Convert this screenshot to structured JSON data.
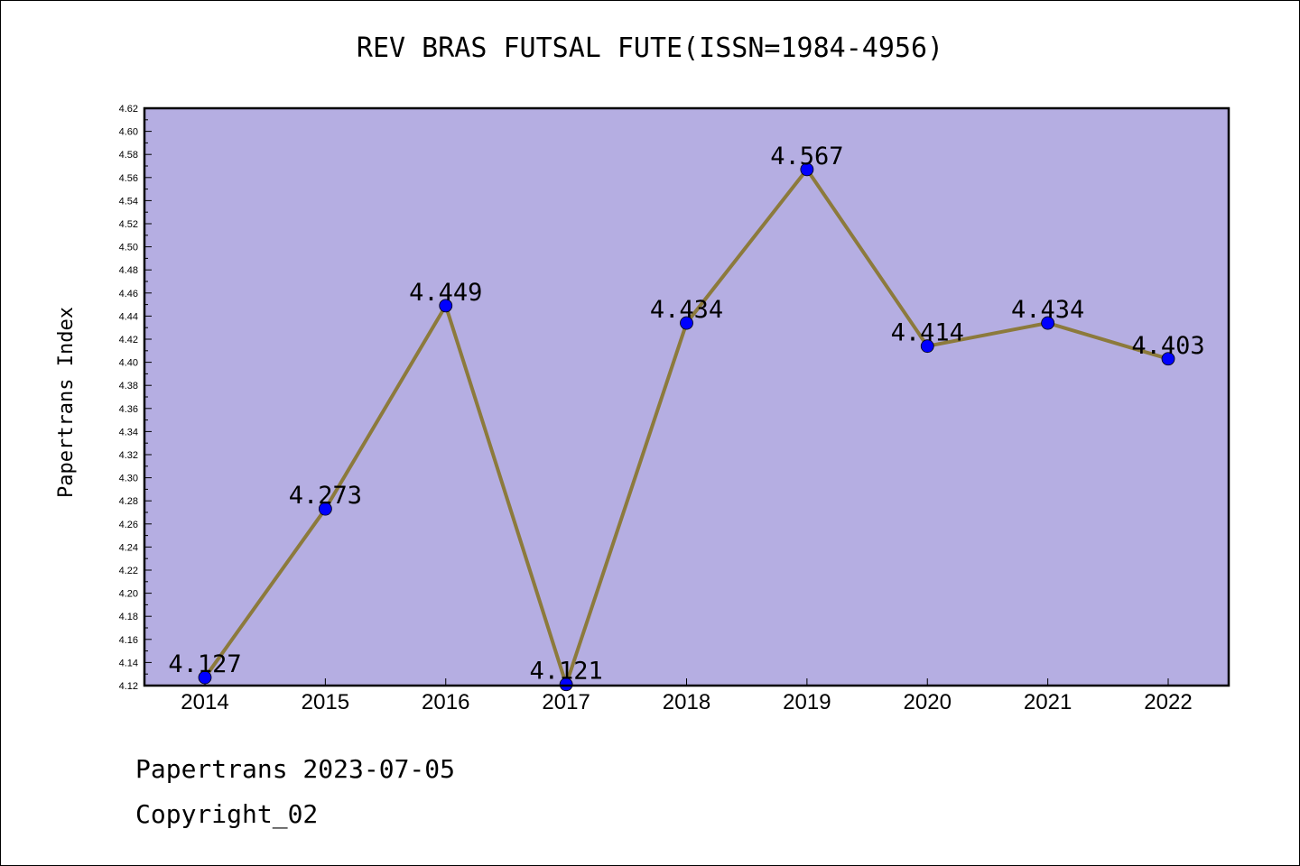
{
  "chart_data": {
    "type": "line",
    "title": "REV BRAS FUTSAL FUTE(ISSN=1984-4956)",
    "xlabel": "",
    "ylabel": "Papertrans Index",
    "categories": [
      "2014",
      "2015",
      "2016",
      "2017",
      "2018",
      "2019",
      "2020",
      "2021",
      "2022"
    ],
    "series": [
      {
        "values": [
          4.127,
          4.273,
          4.449,
          4.121,
          4.434,
          4.567,
          4.414,
          4.434,
          4.403
        ],
        "data_labels": [
          "4.127",
          "4.273",
          "4.449",
          "4.121",
          "4.434",
          "4.567",
          "4.414",
          "4.434",
          "4.403"
        ]
      }
    ],
    "ylim": [
      4.12,
      4.62
    ],
    "yticks": [
      "4.12",
      "4.14",
      "4.16",
      "4.18",
      "4.20",
      "4.22",
      "4.24",
      "4.26",
      "4.28",
      "4.30",
      "4.32",
      "4.34",
      "4.36",
      "4.38",
      "4.40",
      "4.42",
      "4.44",
      "4.46",
      "4.48",
      "4.50",
      "4.52",
      "4.54",
      "4.56",
      "4.58",
      "4.60",
      "4.62"
    ],
    "grid": false,
    "colors": {
      "plot_background": "#b5aee2",
      "line": "#8c7a3c",
      "marker": "#0000ff"
    }
  },
  "footer": {
    "line1": "Papertrans 2023-07-05",
    "line2": "Copyright_02"
  }
}
